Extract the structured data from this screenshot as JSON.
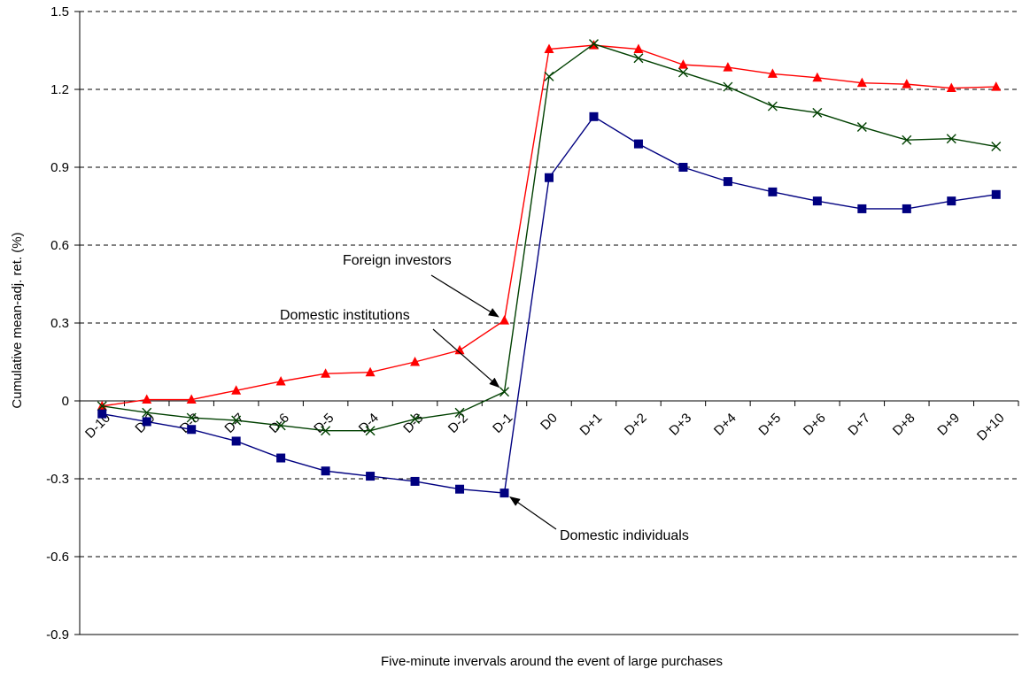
{
  "chart_data": {
    "type": "line",
    "title": "",
    "xlabel": "Five-minute invervals around the event of large purchases",
    "ylabel": "Cumulative mean-adj. ret. (%)",
    "ylim": [
      -0.9,
      1.5
    ],
    "yticks": [
      "1.5",
      "1.2",
      "0.9",
      "0.6",
      "0.3",
      "0",
      "-0.3",
      "-0.6",
      "-0.9"
    ],
    "grid": "horizontal dashed",
    "categories": [
      "D-10",
      "D-9",
      "D-8",
      "D-7",
      "D-6",
      "D-5",
      "D-4",
      "D-3",
      "D-2",
      "D-1",
      "D0",
      "D+1",
      "D+2",
      "D+3",
      "D+4",
      "D+5",
      "D+6",
      "D+7",
      "D+8",
      "D+9",
      "D+10"
    ],
    "series": [
      {
        "name": "Foreign investors",
        "color": "#ff0000",
        "marker": "triangle",
        "values": [
          -0.02,
          0.005,
          0.005,
          0.04,
          0.075,
          0.105,
          0.11,
          0.15,
          0.195,
          0.31,
          1.355,
          1.37,
          1.355,
          1.295,
          1.285,
          1.26,
          1.245,
          1.225,
          1.22,
          1.205,
          1.21
        ]
      },
      {
        "name": "Domestic institutions",
        "color": "#004000",
        "marker": "x",
        "values": [
          -0.02,
          -0.045,
          -0.065,
          -0.075,
          -0.095,
          -0.115,
          -0.115,
          -0.07,
          -0.045,
          0.035,
          1.25,
          1.375,
          1.32,
          1.265,
          1.21,
          1.135,
          1.11,
          1.055,
          1.005,
          1.01,
          0.98
        ]
      },
      {
        "name": "Domestic individuals",
        "color": "#000080",
        "marker": "square",
        "values": [
          -0.05,
          -0.08,
          -0.11,
          -0.155,
          -0.22,
          -0.27,
          -0.29,
          -0.31,
          -0.34,
          -0.355,
          0.86,
          1.095,
          0.99,
          0.9,
          0.845,
          0.805,
          0.77,
          0.74,
          0.74,
          0.77,
          0.795
        ]
      }
    ],
    "annotations": [
      {
        "text": "Foreign investors",
        "series": "Foreign investors",
        "point": "D-1"
      },
      {
        "text": "Domestic institutions",
        "series": "Domestic institutions",
        "point": "D-1"
      },
      {
        "text": "Domestic individuals",
        "series": "Domestic individuals",
        "point": "D-1"
      }
    ],
    "legend": "none"
  }
}
